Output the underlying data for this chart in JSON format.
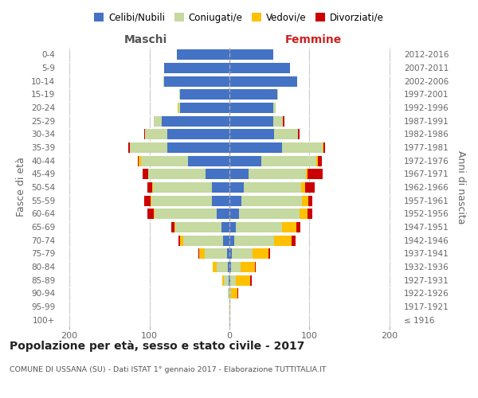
{
  "age_groups": [
    "100+",
    "95-99",
    "90-94",
    "85-89",
    "80-84",
    "75-79",
    "70-74",
    "65-69",
    "60-64",
    "55-59",
    "50-54",
    "45-49",
    "40-44",
    "35-39",
    "30-34",
    "25-29",
    "20-24",
    "15-19",
    "10-14",
    "5-9",
    "0-4"
  ],
  "birth_years": [
    "≤ 1916",
    "1917-1921",
    "1922-1926",
    "1927-1931",
    "1932-1936",
    "1937-1941",
    "1942-1946",
    "1947-1951",
    "1952-1956",
    "1957-1961",
    "1962-1966",
    "1967-1971",
    "1972-1976",
    "1977-1981",
    "1982-1986",
    "1987-1991",
    "1992-1996",
    "1997-2001",
    "2002-2006",
    "2007-2011",
    "2012-2016"
  ],
  "maschi": {
    "celibi": [
      0,
      0,
      0,
      1,
      2,
      3,
      8,
      10,
      16,
      22,
      22,
      30,
      52,
      78,
      78,
      85,
      62,
      62,
      82,
      82,
      66
    ],
    "coniugati": [
      0,
      0,
      2,
      6,
      14,
      28,
      50,
      58,
      78,
      76,
      74,
      72,
      58,
      46,
      28,
      10,
      2,
      1,
      1,
      0,
      0
    ],
    "vedovi": [
      0,
      0,
      0,
      2,
      5,
      7,
      4,
      1,
      1,
      1,
      1,
      0,
      3,
      0,
      0,
      0,
      1,
      0,
      0,
      0,
      0
    ],
    "divorziati": [
      0,
      0,
      0,
      0,
      0,
      1,
      2,
      4,
      8,
      8,
      6,
      6,
      1,
      2,
      1,
      0,
      0,
      0,
      0,
      0,
      0
    ]
  },
  "femmine": {
    "nubili": [
      0,
      0,
      0,
      1,
      2,
      3,
      6,
      8,
      12,
      15,
      18,
      24,
      40,
      66,
      56,
      55,
      55,
      60,
      85,
      76,
      55
    ],
    "coniugate": [
      0,
      0,
      2,
      7,
      12,
      26,
      50,
      58,
      76,
      76,
      72,
      72,
      68,
      50,
      30,
      12,
      3,
      1,
      0,
      0,
      0
    ],
    "vedove": [
      0,
      1,
      8,
      18,
      18,
      20,
      22,
      18,
      10,
      8,
      5,
      2,
      2,
      1,
      0,
      0,
      0,
      0,
      0,
      0,
      0
    ],
    "divorziate": [
      0,
      0,
      1,
      2,
      1,
      2,
      5,
      5,
      6,
      5,
      12,
      18,
      5,
      2,
      2,
      2,
      0,
      0,
      0,
      0,
      0
    ]
  },
  "colors": {
    "celibi": "#4472c4",
    "coniugati": "#c5d9a0",
    "vedovi": "#ffc000",
    "divorziati": "#cc0000"
  },
  "xlim": [
    -215,
    215
  ],
  "xticks": [
    -200,
    -100,
    0,
    100,
    200
  ],
  "xticklabels": [
    "200",
    "100",
    "0",
    "100",
    "200"
  ],
  "title": "Popolazione per età, sesso e stato civile - 2017",
  "subtitle": "COMUNE DI USSANA (SU) - Dati ISTAT 1° gennaio 2017 - Elaborazione TUTTITALIA.IT",
  "ylabel_left": "Fasce di età",
  "ylabel_right": "Anni di nascita",
  "label_maschi": "Maschi",
  "label_femmine": "Femmine",
  "legend_labels": [
    "Celibi/Nubili",
    "Coniugati/e",
    "Vedovi/e",
    "Divorziati/e"
  ],
  "bg_color": "#ffffff",
  "grid_color": "#cccccc"
}
